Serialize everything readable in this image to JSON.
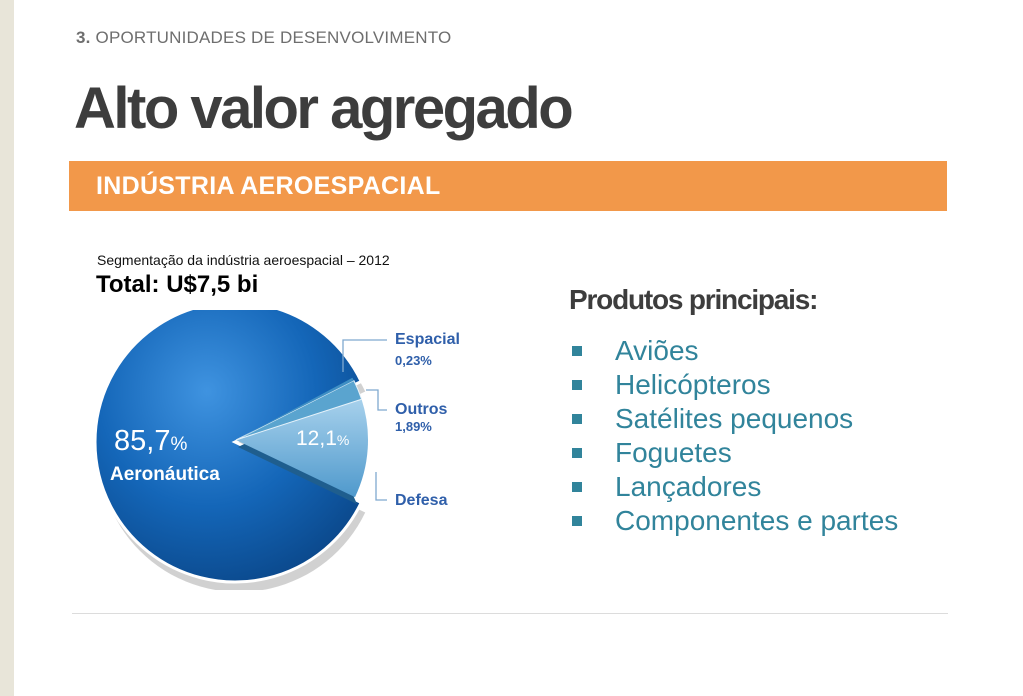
{
  "section": {
    "number": "3.",
    "label": "OPORTUNIDADES DE DESENVOLVIMENTO"
  },
  "title": "Alto valor agregado",
  "banner": "INDÚSTRIA AEROESPACIAL",
  "chart": {
    "caption": "Segmentação da indústria aeroespacial – 2012",
    "total": "Total: U$7,5 bi"
  },
  "chart_data": {
    "type": "pie",
    "slices": [
      {
        "label": "Aeronáutica",
        "value": 85.7,
        "value_text": "85,7",
        "unit": "%",
        "color": "#1466b8"
      },
      {
        "label": "Defesa",
        "value": 12.1,
        "value_text": "12,1",
        "unit": "%",
        "color": "#6fb0d8"
      },
      {
        "label": "Outros",
        "value": 1.89,
        "value_text": "1,89%",
        "color": "#5aa4cf"
      },
      {
        "label": "Espacial",
        "value": 0.23,
        "value_text": "0,23%",
        "color": "#3f8fc4"
      }
    ],
    "exploded": [
      "Defesa",
      "Outros",
      "Espacial"
    ]
  },
  "products": {
    "heading": "Produtos principais:",
    "items": [
      "Aviões",
      "Helicópteros",
      "Satélites pequenos",
      "Foguetes",
      "Lançadores",
      "Componentes e partes"
    ]
  }
}
